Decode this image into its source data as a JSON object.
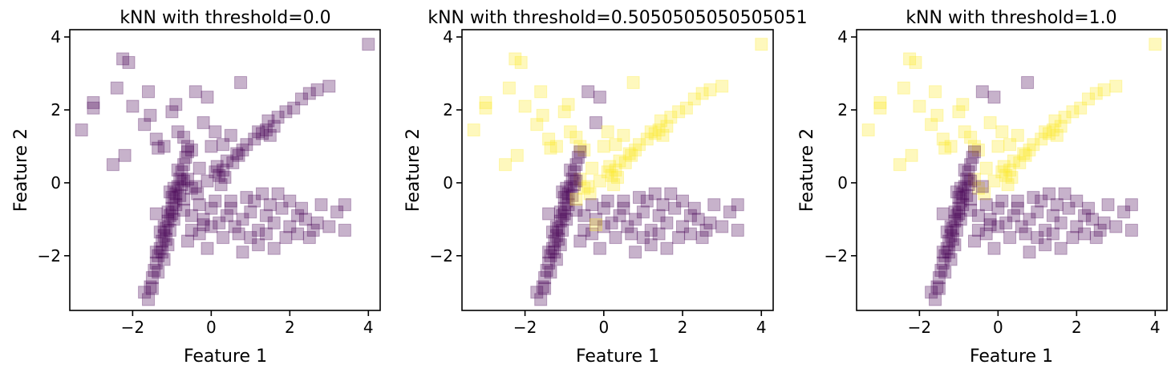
{
  "colors": {
    "class0": "#440154",
    "class1": "#fde725",
    "point_alpha": 0.3
  },
  "chart_data": [
    {
      "type": "scatter",
      "title": "kNN with threshold=0.0",
      "xlabel": "Feature 1",
      "ylabel": "Feature 2",
      "xlim": [
        -3.6,
        4.3
      ],
      "ylim": [
        -3.5,
        4.2
      ],
      "xticks": [
        -2,
        0,
        2,
        4
      ],
      "yticks": [
        -2,
        0,
        2,
        4
      ],
      "xtick_labels": [
        "−2",
        "0",
        "2",
        "4"
      ],
      "ytick_labels": [
        "−2",
        "0",
        "2",
        "4"
      ],
      "marker": "square",
      "threshold": 0.0,
      "grid": false
    },
    {
      "type": "scatter",
      "title": "kNN with threshold=0.5050505050505051",
      "xlabel": "Feature 1",
      "ylabel": "Feature 2",
      "xlim": [
        -3.6,
        4.3
      ],
      "ylim": [
        -3.5,
        4.2
      ],
      "xticks": [
        -2,
        0,
        2,
        4
      ],
      "yticks": [
        -2,
        0,
        2,
        4
      ],
      "xtick_labels": [
        "−2",
        "0",
        "2",
        "4"
      ],
      "ytick_labels": [
        "−2",
        "0",
        "2",
        "4"
      ],
      "marker": "square",
      "threshold": 0.5050505050505051,
      "grid": false
    },
    {
      "type": "scatter",
      "title": "kNN with threshold=1.0",
      "xlabel": "Feature 1",
      "ylabel": "Feature 2",
      "xlim": [
        -3.6,
        4.3
      ],
      "ylim": [
        -3.5,
        4.2
      ],
      "xticks": [
        -2,
        0,
        2,
        4
      ],
      "yticks": [
        -2,
        0,
        2,
        4
      ],
      "xtick_labels": [
        "−2",
        "0",
        "2",
        "4"
      ],
      "ytick_labels": [
        "−2",
        "0",
        "2",
        "4"
      ],
      "marker": "square",
      "threshold": 1.0,
      "grid": false
    }
  ],
  "points": {
    "columns": [
      "x",
      "y",
      "class_threshold_0",
      "class_threshold_0_505",
      "class_threshold_1"
    ],
    "scattered_outliers": [
      [
        -3.3,
        1.45,
        0,
        1,
        1
      ],
      [
        -3.0,
        2.2,
        0,
        1,
        1
      ],
      [
        -3.0,
        2.05,
        0,
        1,
        1
      ],
      [
        -2.4,
        2.6,
        0,
        1,
        1
      ],
      [
        -2.25,
        3.4,
        0,
        1,
        1
      ],
      [
        -2.1,
        3.3,
        0,
        1,
        1
      ],
      [
        -2.0,
        2.1,
        0,
        1,
        1
      ],
      [
        -2.5,
        0.5,
        0,
        1,
        1
      ],
      [
        -2.2,
        0.75,
        0,
        1,
        1
      ],
      [
        -1.6,
        2.5,
        0,
        1,
        1
      ],
      [
        -1.55,
        1.85,
        0,
        1,
        1
      ],
      [
        -1.7,
        1.6,
        0,
        1,
        1
      ],
      [
        -1.4,
        1.2,
        0,
        1,
        1
      ],
      [
        -1.35,
        0.95,
        0,
        1,
        1
      ],
      [
        -1.2,
        1.0,
        0,
        1,
        1
      ],
      [
        -1.0,
        1.95,
        0,
        1,
        1
      ],
      [
        -0.9,
        2.15,
        0,
        1,
        1
      ],
      [
        -0.7,
        1.25,
        0,
        1,
        1
      ],
      [
        -0.85,
        1.4,
        0,
        1,
        1
      ],
      [
        -0.5,
        0.9,
        0,
        1,
        1
      ],
      [
        -0.6,
        1.0,
        0,
        1,
        1
      ],
      [
        -0.2,
        1.65,
        0,
        0,
        1
      ],
      [
        -0.4,
        2.5,
        0,
        0,
        0
      ],
      [
        -0.1,
        2.35,
        0,
        0,
        0
      ],
      [
        0.1,
        1.4,
        0,
        1,
        1
      ],
      [
        0.5,
        1.3,
        0,
        1,
        1
      ],
      [
        0.75,
        2.75,
        0,
        1,
        0
      ],
      [
        0.0,
        1.0,
        0,
        1,
        1
      ],
      [
        0.3,
        1.05,
        0,
        1,
        1
      ],
      [
        4.0,
        3.8,
        0,
        1,
        1
      ],
      [
        3.0,
        2.65,
        0,
        1,
        1
      ],
      [
        2.7,
        2.55,
        0,
        1,
        1
      ]
    ],
    "upper_diagonal": [
      [
        0.1,
        0.3,
        0,
        1,
        1
      ],
      [
        0.2,
        0.2,
        0,
        1,
        1
      ],
      [
        0.3,
        0.35,
        0,
        1,
        1
      ],
      [
        0.15,
        0.45,
        0,
        1,
        1
      ],
      [
        0.35,
        0.15,
        0,
        1,
        1
      ],
      [
        0.55,
        0.55,
        0,
        1,
        1
      ],
      [
        0.7,
        0.75,
        0,
        1,
        1
      ],
      [
        0.8,
        0.9,
        0,
        1,
        1
      ],
      [
        0.65,
        0.8,
        0,
        1,
        1
      ],
      [
        0.9,
        1.05,
        0,
        1,
        1
      ],
      [
        1.1,
        1.2,
        0,
        1,
        1
      ],
      [
        1.3,
        1.35,
        0,
        1,
        1
      ],
      [
        1.4,
        1.45,
        0,
        1,
        1
      ],
      [
        1.5,
        1.3,
        0,
        1,
        1
      ],
      [
        1.6,
        1.55,
        0,
        1,
        1
      ],
      [
        1.7,
        1.8,
        0,
        1,
        1
      ],
      [
        1.9,
        1.95,
        0,
        1,
        1
      ],
      [
        2.1,
        2.05,
        0,
        1,
        1
      ],
      [
        2.3,
        2.3,
        0,
        1,
        1
      ],
      [
        2.5,
        2.45,
        0,
        1,
        1
      ],
      [
        1.2,
        1.4,
        0,
        1,
        1
      ],
      [
        1.45,
        1.7,
        0,
        1,
        1
      ],
      [
        0.4,
        0.6,
        0,
        1,
        1
      ],
      [
        -0.1,
        0.05,
        0,
        1,
        1
      ],
      [
        -0.35,
        -0.3,
        0,
        1,
        1
      ],
      [
        -0.5,
        -0.15,
        0,
        1,
        1
      ],
      [
        -0.6,
        0.1,
        0,
        1,
        1
      ],
      [
        -0.3,
        0.4,
        0,
        1,
        1
      ],
      [
        0.25,
        -0.05,
        0,
        1,
        1
      ]
    ],
    "steep_diagonal": [
      [
        -1.7,
        -3.0,
        0,
        0,
        0
      ],
      [
        -1.6,
        -3.2,
        0,
        0,
        0
      ],
      [
        -1.55,
        -2.85,
        0,
        0,
        0
      ],
      [
        -1.5,
        -2.6,
        0,
        0,
        0
      ],
      [
        -1.45,
        -2.4,
        0,
        0,
        0
      ],
      [
        -1.4,
        -2.2,
        0,
        0,
        0
      ],
      [
        -1.35,
        -2.0,
        0,
        0,
        0
      ],
      [
        -1.3,
        -1.8,
        0,
        0,
        0
      ],
      [
        -1.25,
        -1.6,
        0,
        0,
        0
      ],
      [
        -1.2,
        -1.45,
        0,
        0,
        0
      ],
      [
        -1.15,
        -1.25,
        0,
        0,
        0
      ],
      [
        -1.1,
        -1.05,
        0,
        0,
        0
      ],
      [
        -1.05,
        -0.9,
        0,
        0,
        0
      ],
      [
        -1.0,
        -0.7,
        0,
        0,
        0
      ],
      [
        -0.95,
        -0.5,
        0,
        0,
        0
      ],
      [
        -0.9,
        -0.3,
        0,
        0,
        0
      ],
      [
        -0.85,
        -0.1,
        0,
        0,
        0
      ],
      [
        -0.8,
        0.1,
        0,
        0,
        0
      ],
      [
        -0.75,
        0.3,
        0,
        0,
        0
      ],
      [
        -0.7,
        0.5,
        0,
        0,
        0
      ],
      [
        -0.65,
        0.7,
        0,
        0,
        0
      ],
      [
        -0.6,
        0.85,
        0,
        0,
        0
      ],
      [
        -1.2,
        -1.2,
        0,
        0,
        0
      ],
      [
        -1.1,
        -0.8,
        0,
        0,
        0
      ],
      [
        -1.0,
        -0.4,
        0,
        0,
        0
      ],
      [
        -0.95,
        -0.15,
        0,
        0,
        0
      ],
      [
        -1.3,
        -1.35,
        0,
        0,
        0
      ],
      [
        -1.4,
        -1.9,
        0,
        0,
        0
      ],
      [
        -1.25,
        -1.9,
        0,
        0,
        0
      ],
      [
        -1.15,
        -1.55,
        0,
        0,
        0
      ],
      [
        -0.9,
        -0.6,
        0,
        0,
        0
      ],
      [
        -0.8,
        -0.35,
        0,
        0,
        0
      ],
      [
        -1.05,
        -0.25,
        0,
        0,
        0
      ],
      [
        -0.7,
        0.05,
        0,
        0,
        0
      ],
      [
        -0.85,
        0.35,
        0,
        0,
        0
      ],
      [
        -1.35,
        -2.45,
        0,
        0,
        0
      ],
      [
        -1.5,
        -2.9,
        0,
        0,
        0
      ],
      [
        -1.2,
        -2.1,
        0,
        0,
        0
      ],
      [
        -0.95,
        -1.0,
        0,
        0,
        0
      ],
      [
        -1.1,
        -1.7,
        0,
        0,
        0
      ],
      [
        -1.05,
        -1.3,
        0,
        0,
        0
      ],
      [
        -0.75,
        -0.05,
        0,
        0,
        0
      ]
    ],
    "horizontal_cluster": [
      [
        -0.5,
        -0.9,
        0,
        0,
        0
      ],
      [
        -0.2,
        -1.0,
        0,
        0,
        0
      ],
      [
        0.0,
        -0.7,
        0,
        0,
        0
      ],
      [
        0.2,
        -1.1,
        0,
        0,
        0
      ],
      [
        0.4,
        -0.9,
        0,
        0,
        0
      ],
      [
        0.6,
        -1.2,
        0,
        0,
        0
      ],
      [
        0.8,
        -1.0,
        0,
        0,
        0
      ],
      [
        1.0,
        -0.8,
        0,
        0,
        0
      ],
      [
        1.2,
        -1.3,
        0,
        0,
        0
      ],
      [
        1.4,
        -0.9,
        0,
        0,
        0
      ],
      [
        1.6,
        -1.1,
        0,
        0,
        0
      ],
      [
        1.8,
        -0.7,
        0,
        0,
        0
      ],
      [
        2.0,
        -1.2,
        0,
        0,
        0
      ],
      [
        2.2,
        -0.9,
        0,
        0,
        0
      ],
      [
        2.4,
        -1.0,
        0,
        0,
        0
      ],
      [
        2.6,
        -1.3,
        0,
        0,
        0
      ],
      [
        2.8,
        -0.6,
        0,
        0,
        0
      ],
      [
        3.2,
        -0.8,
        0,
        0,
        0
      ],
      [
        3.4,
        -0.6,
        0,
        0,
        0
      ],
      [
        3.4,
        -1.3,
        0,
        0,
        0
      ],
      [
        2.5,
        -1.5,
        0,
        0,
        0
      ],
      [
        2.2,
        -1.4,
        0,
        0,
        0
      ],
      [
        1.6,
        -1.8,
        0,
        0,
        0
      ],
      [
        1.2,
        -1.7,
        0,
        0,
        0
      ],
      [
        0.8,
        -1.9,
        0,
        0,
        0
      ],
      [
        -0.1,
        -1.8,
        0,
        0,
        0
      ],
      [
        -0.3,
        -1.4,
        0,
        0,
        0
      ],
      [
        -0.5,
        -1.3,
        0,
        0,
        0
      ],
      [
        0.5,
        -0.5,
        0,
        0,
        0
      ],
      [
        1.1,
        -0.5,
        0,
        0,
        0
      ],
      [
        1.7,
        -0.3,
        0,
        0,
        0
      ],
      [
        1.3,
        -0.3,
        0,
        0,
        0
      ],
      [
        0.9,
        -0.4,
        0,
        0,
        0
      ],
      [
        -0.3,
        -0.6,
        0,
        0,
        0
      ],
      [
        0.1,
        -0.5,
        0,
        0,
        0
      ],
      [
        0.3,
        -1.5,
        0,
        0,
        0
      ],
      [
        0.7,
        -1.4,
        0,
        0,
        0
      ],
      [
        1.0,
        -1.5,
        0,
        0,
        0
      ],
      [
        1.4,
        -1.4,
        0,
        0,
        0
      ],
      [
        1.9,
        -1.5,
        0,
        0,
        0
      ],
      [
        -0.6,
        -1.6,
        0,
        0,
        0
      ],
      [
        -1.4,
        -0.85,
        0,
        0,
        0
      ],
      [
        -1.0,
        -0.85,
        0,
        0,
        0
      ],
      [
        -0.7,
        -0.75,
        0,
        0,
        0
      ],
      [
        0.0,
        -1.2,
        0,
        0,
        0
      ],
      [
        0.5,
        -0.7,
        0,
        0,
        0
      ],
      [
        1.5,
        -0.6,
        0,
        0,
        0
      ],
      [
        2.0,
        -0.5,
        0,
        0,
        0
      ],
      [
        2.3,
        -0.7,
        0,
        0,
        0
      ],
      [
        2.7,
        -1.1,
        0,
        0,
        0
      ],
      [
        3.0,
        -1.2,
        0,
        0,
        0
      ],
      [
        -0.2,
        -1.15,
        0,
        1,
        0
      ],
      [
        -0.4,
        -0.1,
        0,
        1,
        0
      ],
      [
        -0.7,
        -0.45,
        0,
        1,
        0
      ]
    ]
  }
}
